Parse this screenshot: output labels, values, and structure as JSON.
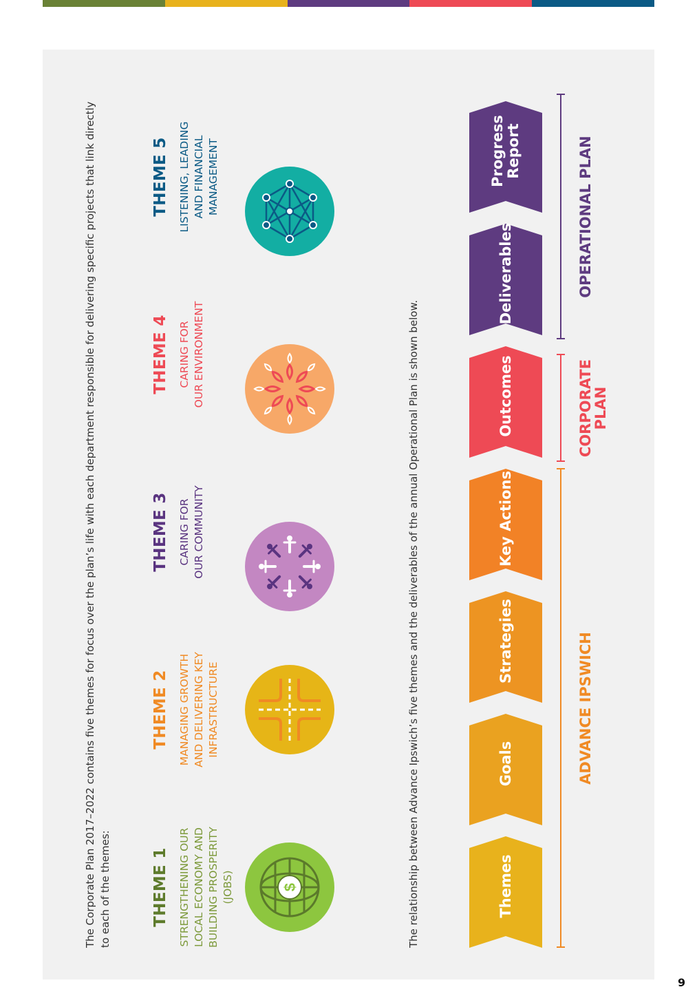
{
  "colors": {
    "strip": [
      "#6a8236",
      "#e8b21c",
      "#5e3b80",
      "#ee4a55",
      "#0b5a85"
    ]
  },
  "intro_text": "The Corporate Plan 2017–2022 contains five themes for focus over the plan’s life with each department responsible for delivering specific projects that link directly to each of the themes:",
  "themes": [
    {
      "title": "THEME 1",
      "subtitle_lines": [
        "STRENGTHENING OUR",
        "LOCAL ECONOMY AND",
        "BUILDING PROSPERITY",
        "(JOBS)"
      ],
      "color": "#5e7b2c",
      "subtitle_color": "#7d9a3c",
      "circle_color": "#8dc63f",
      "icon": "globe-dollar-icon"
    },
    {
      "title": "THEME 2",
      "subtitle_lines": [
        "MANAGING GROWTH",
        "AND DELIVERING KEY",
        "INFRASTRUCTURE"
      ],
      "color": "#f08a24",
      "subtitle_color": "#f08a24",
      "circle_color": "#e6b517",
      "icon": "road-intersection-icon"
    },
    {
      "title": "THEME 3",
      "subtitle_lines": [
        "CARING FOR",
        "OUR COMMUNITY"
      ],
      "color": "#5a3480",
      "subtitle_color": "#5a3480",
      "circle_color": "#c387c2",
      "icon": "people-circle-icon"
    },
    {
      "title": "THEME 4",
      "subtitle_lines": [
        "CARING FOR",
        "OUR ENVIRONMENT"
      ],
      "color": "#ee4a55",
      "subtitle_color": "#ee4a55",
      "circle_color": "#f7a868",
      "icon": "leaves-circle-icon"
    },
    {
      "title": "THEME 5",
      "subtitle_lines": [
        "LISTENING, LEADING",
        "AND FINANCIAL",
        "MANAGEMENT"
      ],
      "color": "#0b5a85",
      "subtitle_color": "#0b5a85",
      "circle_color": "#13aea3",
      "icon": "network-icon"
    }
  ],
  "relationship_text": "The relationship between Advance Ipswich’s five themes and the deliverables of the annual Operational Plan is shown below.",
  "flow": [
    {
      "label": "Themes",
      "color": "#e8b21c"
    },
    {
      "label": "Goals",
      "color": "#eaa220"
    },
    {
      "label": "Strategies",
      "color": "#ed9422"
    },
    {
      "label": "Key Actions",
      "color": "#f28226"
    },
    {
      "label": "Outcomes",
      "color": "#ee4a55"
    },
    {
      "label": "Deliverables",
      "color": "#5e3b80"
    },
    {
      "label": "Progress Report",
      "lines": [
        "Progress",
        "Report"
      ],
      "color": "#5e3b80"
    }
  ],
  "brackets": [
    {
      "label": "ADVANCE IPSWICH",
      "color": "#f08a24"
    },
    {
      "label": "CORPORATE PLAN",
      "lines": [
        "CORPORATE",
        "PLAN"
      ],
      "color": "#ee4a55"
    },
    {
      "label": "OPERATIONAL PLAN",
      "color": "#5e3b80"
    }
  ],
  "page_number": "9"
}
